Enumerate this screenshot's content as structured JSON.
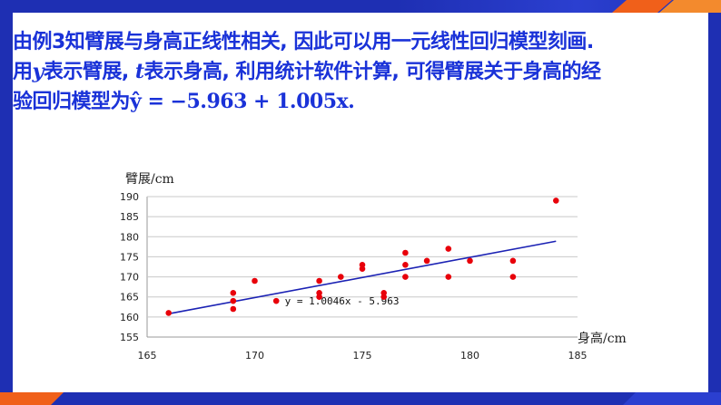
{
  "text": {
    "line1": "由例3知臂展与身高正线性相关, 因此可以用一元线性回归模型刻画.",
    "line2a": "用",
    "line2_y": "y",
    "line2b": "表示臂展, ",
    "line2_t": "t",
    "line2c": "表示身高, 利用统计软件计算, 可得臂展关于身高的经",
    "line3a": "验回归模型为",
    "line3_formula": "ŷ = −5.963 + 1.005x."
  },
  "colors": {
    "title_text": "#1a32d8",
    "frame_blue": "#1e2fb3",
    "frame_orange": "#f0601a",
    "point": "#e8000a",
    "line": "#1b22b4"
  },
  "chart_data": {
    "type": "scatter",
    "xlabel": "身高/cm",
    "ylabel": "臂展/cm",
    "xlim": [
      165,
      185
    ],
    "ylim": [
      155,
      190
    ],
    "xticks": [
      165,
      170,
      175,
      180,
      185
    ],
    "yticks": [
      155,
      160,
      165,
      170,
      175,
      180,
      185,
      190
    ],
    "grid": "horizontal",
    "points": [
      {
        "x": 166,
        "y": 161
      },
      {
        "x": 169,
        "y": 166
      },
      {
        "x": 169,
        "y": 164
      },
      {
        "x": 169,
        "y": 162
      },
      {
        "x": 170,
        "y": 169
      },
      {
        "x": 171,
        "y": 164
      },
      {
        "x": 173,
        "y": 169
      },
      {
        "x": 173,
        "y": 166
      },
      {
        "x": 173,
        "y": 165
      },
      {
        "x": 174,
        "y": 170
      },
      {
        "x": 175,
        "y": 173
      },
      {
        "x": 175,
        "y": 172
      },
      {
        "x": 176,
        "y": 166
      },
      {
        "x": 176,
        "y": 165
      },
      {
        "x": 177,
        "y": 176
      },
      {
        "x": 177,
        "y": 173
      },
      {
        "x": 177,
        "y": 170
      },
      {
        "x": 178,
        "y": 174
      },
      {
        "x": 179,
        "y": 177
      },
      {
        "x": 179,
        "y": 170
      },
      {
        "x": 180,
        "y": 174
      },
      {
        "x": 182,
        "y": 174
      },
      {
        "x": 182,
        "y": 170
      },
      {
        "x": 184,
        "y": 189
      }
    ],
    "trendline": {
      "slope": 1.0046,
      "intercept": -5.963,
      "x_range": [
        166,
        184
      ],
      "label": "y = 1.0046x - 5.963"
    }
  }
}
